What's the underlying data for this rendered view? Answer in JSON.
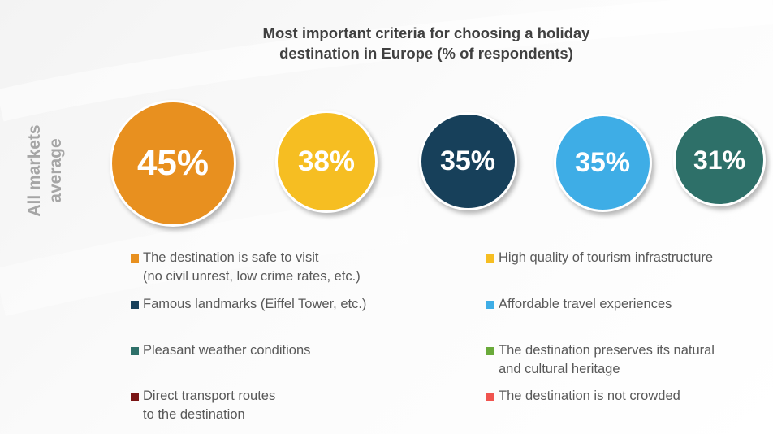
{
  "chart_data": {
    "type": "bubble",
    "title": "Most important criteria for choosing a holiday\ndestination in Europe (% of respondents)",
    "side_label": "All markets\naverage",
    "series": [
      {
        "name": "The destination is safe to visit\n(no civil unrest, low crime rates, etc.)",
        "value": 45,
        "label": "45%",
        "color": "#E8901F"
      },
      {
        "name": "High quality of tourism infrastructure",
        "value": 38,
        "label": "38%",
        "color": "#F6BE22"
      },
      {
        "name": "Famous landmarks (Eiffel Tower, etc.)",
        "value": 35,
        "label": "35%",
        "color": "#17405A"
      },
      {
        "name": "Affordable travel experiences",
        "value": 35,
        "label": "35%",
        "color": "#3EADE6"
      },
      {
        "name": "Pleasant weather conditions",
        "value": 31,
        "label": "31%",
        "color": "#2E7069"
      },
      {
        "name": "The destination preserves its natural\nand cultural heritage",
        "color": "#6AAA3A"
      },
      {
        "name": "Direct transport routes\nto the destination",
        "color": "#7A1515"
      },
      {
        "name": "The destination is not crowded",
        "color": "#F0544F"
      }
    ]
  }
}
